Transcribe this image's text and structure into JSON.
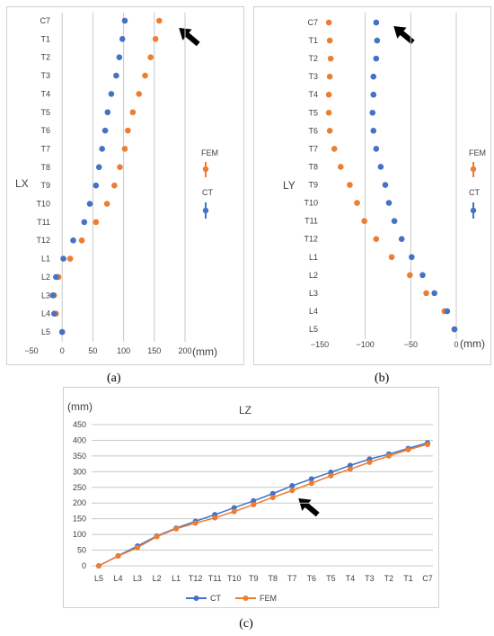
{
  "colors": {
    "ct": "#4472c4",
    "fem": "#ed7d31",
    "arrow": "#000000"
  },
  "chart_data": [
    {
      "type": "scatter",
      "title": "",
      "panel_label": "(a)",
      "axis_label": "LX",
      "unit_label": "(mm)",
      "xlim": [
        -50,
        200
      ],
      "x_ticks": [
        "−50",
        "0",
        "50",
        "100",
        "150",
        "200"
      ],
      "categories": [
        "C7",
        "T1",
        "T2",
        "T3",
        "T4",
        "T5",
        "T6",
        "T7",
        "T8",
        "T9",
        "T10",
        "T11",
        "T12",
        "L1",
        "L2",
        "L3",
        "L4",
        "L5"
      ],
      "series": [
        {
          "name": "CT",
          "values": [
            102,
            98,
            93,
            88,
            80,
            74,
            70,
            65,
            60,
            55,
            45,
            36,
            18,
            2,
            -10,
            -15,
            -13,
            0
          ]
        },
        {
          "name": "FEM",
          "values": [
            158,
            152,
            144,
            135,
            125,
            115,
            107,
            102,
            94,
            85,
            73,
            55,
            32,
            13,
            -6,
            -13,
            -10,
            0
          ]
        }
      ],
      "annotation": "arrow points to C7"
    },
    {
      "type": "scatter",
      "title": "",
      "panel_label": "(b)",
      "axis_label": "LY",
      "unit_label": "(mm)",
      "xlim": [
        -150,
        0
      ],
      "x_ticks": [
        "−150",
        "−100",
        "−50",
        "0"
      ],
      "categories": [
        "C7",
        "T1",
        "T2",
        "T3",
        "T4",
        "T5",
        "T6",
        "T7",
        "T8",
        "T9",
        "T10",
        "T11",
        "T12",
        "L1",
        "L2",
        "L3",
        "L4",
        "L5"
      ],
      "series": [
        {
          "name": "CT",
          "values": [
            -88,
            -87,
            -88,
            -91,
            -91,
            -92,
            -91,
            -88,
            -83,
            -78,
            -74,
            -68,
            -60,
            -49,
            -37,
            -24,
            -10,
            -2
          ]
        },
        {
          "name": "FEM",
          "values": [
            -140,
            -139,
            -138,
            -139,
            -140,
            -140,
            -139,
            -134,
            -127,
            -117,
            -109,
            -101,
            -88,
            -71,
            -51,
            -33,
            -13,
            -2
          ]
        }
      ],
      "annotation": "arrow points to C7"
    },
    {
      "type": "line",
      "title": "LZ",
      "panel_label": "(c)",
      "ylabel": "(mm)",
      "ylim": [
        0,
        450
      ],
      "y_ticks": [
        "0",
        "50",
        "100",
        "150",
        "200",
        "250",
        "300",
        "350",
        "400",
        "450"
      ],
      "categories": [
        "L5",
        "L4",
        "L3",
        "L2",
        "L1",
        "T12",
        "T11",
        "T10",
        "T9",
        "T8",
        "T7",
        "T6",
        "T5",
        "T4",
        "T3",
        "T2",
        "T1",
        "C7"
      ],
      "series": [
        {
          "name": "CT",
          "values": [
            0,
            32,
            63,
            95,
            120,
            142,
            163,
            185,
            207,
            230,
            255,
            277,
            298,
            320,
            340,
            356,
            374,
            392
          ]
        },
        {
          "name": "FEM",
          "values": [
            0,
            31,
            58,
            93,
            118,
            136,
            153,
            173,
            195,
            218,
            240,
            263,
            287,
            308,
            330,
            350,
            370,
            387
          ]
        }
      ],
      "legend_position": "bottom",
      "annotation": "arrow points to T7"
    }
  ]
}
